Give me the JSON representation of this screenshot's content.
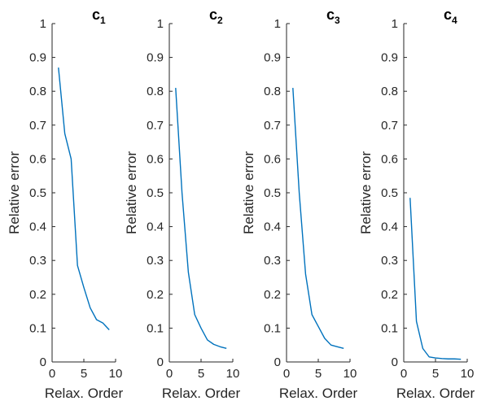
{
  "chart_data": [
    {
      "type": "line",
      "title": "c",
      "title_sub": "1",
      "xlabel": "Relax. Order",
      "ylabel": "Relative error",
      "xlim": [
        0,
        10
      ],
      "ylim": [
        0,
        1
      ],
      "xticks": [
        "0",
        "5",
        "10"
      ],
      "yticks": [
        "0",
        "0.1",
        "0.2",
        "0.3",
        "0.4",
        "0.5",
        "0.6",
        "0.7",
        "0.8",
        "0.9",
        "1"
      ],
      "series": [
        {
          "x": [
            1,
            2,
            3,
            4,
            5,
            6,
            7,
            8,
            9
          ],
          "y": [
            0.87,
            0.675,
            0.6,
            0.285,
            0.22,
            0.16,
            0.125,
            0.115,
            0.095
          ]
        }
      ]
    },
    {
      "type": "line",
      "title": "c",
      "title_sub": "2",
      "xlabel": "Relax. Order",
      "ylabel": "Relative error",
      "xlim": [
        0,
        10
      ],
      "ylim": [
        0,
        1
      ],
      "xticks": [
        "0",
        "5",
        "10"
      ],
      "yticks": [
        "0",
        "0.1",
        "0.2",
        "0.3",
        "0.4",
        "0.5",
        "0.6",
        "0.7",
        "0.8",
        "0.9",
        "1"
      ],
      "series": [
        {
          "x": [
            1,
            2,
            3,
            4,
            5,
            6,
            7,
            8,
            9
          ],
          "y": [
            0.81,
            0.5,
            0.265,
            0.14,
            0.1,
            0.065,
            0.052,
            0.045,
            0.04
          ]
        }
      ]
    },
    {
      "type": "line",
      "title": "c",
      "title_sub": "3",
      "xlabel": "Relax. Order",
      "ylabel": "Relative error",
      "xlim": [
        0,
        10
      ],
      "ylim": [
        0,
        1
      ],
      "xticks": [
        "0",
        "5",
        "10"
      ],
      "yticks": [
        "0",
        "0.1",
        "0.2",
        "0.3",
        "0.4",
        "0.5",
        "0.6",
        "0.7",
        "0.8",
        "0.9",
        "1"
      ],
      "series": [
        {
          "x": [
            1,
            2,
            3,
            4,
            5,
            6,
            7,
            8,
            9
          ],
          "y": [
            0.81,
            0.5,
            0.26,
            0.14,
            0.105,
            0.07,
            0.05,
            0.045,
            0.04
          ]
        }
      ]
    },
    {
      "type": "line",
      "title": "c",
      "title_sub": "4",
      "xlabel": "Relax. Order",
      "ylabel": "Relative error",
      "xlim": [
        0,
        10
      ],
      "ylim": [
        0,
        1
      ],
      "xticks": [
        "0",
        "5",
        "10"
      ],
      "yticks": [
        "0",
        "0.1",
        "0.2",
        "0.3",
        "0.4",
        "0.5",
        "0.6",
        "0.7",
        "0.8",
        "0.9",
        "1"
      ],
      "series": [
        {
          "x": [
            1,
            2,
            3,
            4,
            5,
            6,
            7,
            8,
            9
          ],
          "y": [
            0.485,
            0.12,
            0.04,
            0.015,
            0.012,
            0.01,
            0.009,
            0.009,
            0.008
          ]
        }
      ]
    }
  ],
  "line_color": "#0072BD",
  "axis_color": "#262626"
}
